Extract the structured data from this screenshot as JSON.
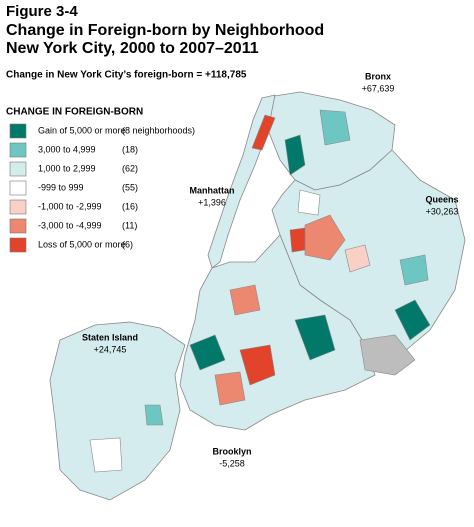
{
  "header": {
    "figure": "Figure 3-4",
    "title_line1": "Change in Foreign-born by Neighborhood",
    "title_line2": "New York City, 2000 to 2007–2011"
  },
  "summary": "Change in New York City’s foreign-born = +118,785",
  "legend": {
    "title": "CHANGE IN FOREIGN-BORN",
    "items": [
      {
        "label": "Gain of 5,000 or more",
        "count": "(8 neighborhoods)",
        "color": "#00796b"
      },
      {
        "label": "3,000 to 4,999",
        "count": "(18)",
        "color": "#6ec6c2"
      },
      {
        "label": "1,000 to 2,999",
        "count": "(62)",
        "color": "#d3ecec"
      },
      {
        "label": "-999 to 999",
        "count": "(55)",
        "color": "#ffffff"
      },
      {
        "label": "-1,000 to -2,999",
        "count": "(16)",
        "color": "#f8d0c6"
      },
      {
        "label": "-3,000 to -4,999",
        "count": "(11)",
        "color": "#ec8870"
      },
      {
        "label": "Loss of 5,000 or more",
        "count": "(6)",
        "color": "#e2432b"
      }
    ]
  },
  "boroughs": [
    {
      "name": "Bronx",
      "change": "+67,639"
    },
    {
      "name": "Manhattan",
      "change": "+1,396"
    },
    {
      "name": "Queens",
      "change": "+30,263"
    },
    {
      "name": "Staten Island",
      "change": "+24,745"
    },
    {
      "name": "Brooklyn",
      "change": "-5,258"
    }
  ]
}
